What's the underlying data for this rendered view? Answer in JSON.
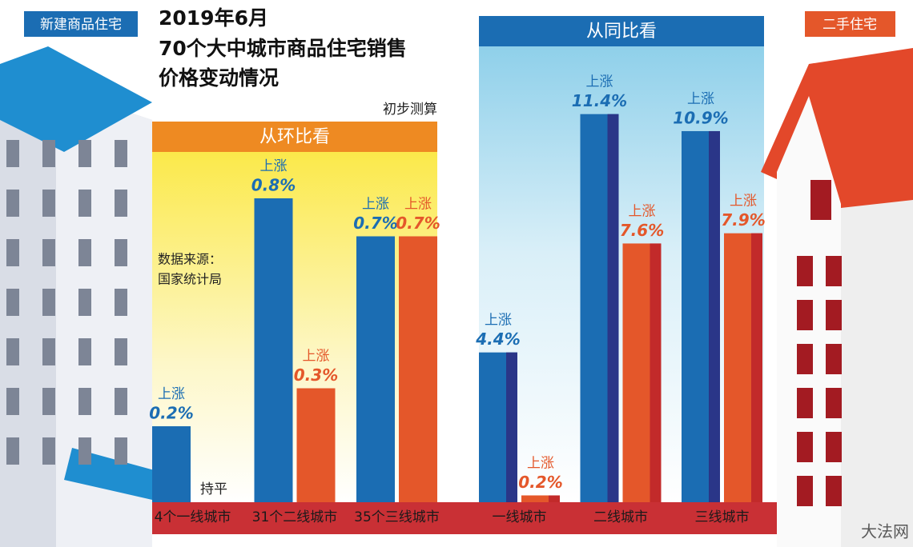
{
  "title_lines": [
    "2019年6月",
    "70个大中城市商品住宅销售",
    "价格变动情况"
  ],
  "note": "初步测算",
  "source": [
    "数据来源：",
    "国家统计局"
  ],
  "legend": [
    {
      "name": "新建商品住宅",
      "color": "#1b6db3"
    },
    {
      "name": "二手住宅",
      "color": "#e4572a"
    }
  ],
  "watermark": "大法网",
  "chart_data": [
    {
      "type": "bar",
      "title": "从环比看",
      "annotation": "上涨",
      "categories": [
        "4个一线城市",
        "31个二线城市",
        "35个三线城市"
      ],
      "series": [
        {
          "color": "#1b6db3",
          "values": [
            0.2,
            0.8,
            0.7
          ],
          "value_labels": [
            "0.2%",
            "0.8%",
            "0.7%"
          ]
        },
        {
          "color": "#e4572a",
          "values": [
            0,
            0.3,
            0.7
          ],
          "value_labels": [
            "持平",
            "0.3%",
            "0.7%"
          ]
        }
      ],
      "ylim": [
        0,
        1
      ]
    },
    {
      "type": "bar",
      "title": "从同比看",
      "annotation": "上涨",
      "categories": [
        "一线城市",
        "二线城市",
        "三线城市"
      ],
      "series": [
        {
          "color": "#1b6db3",
          "values": [
            4.4,
            11.4,
            10.9
          ],
          "value_labels": [
            "4.4%",
            "11.4%",
            "10.9%"
          ]
        },
        {
          "color": "#e4572a",
          "values": [
            0.2,
            7.6,
            7.9
          ],
          "value_labels": [
            "0.2%",
            "7.6%",
            "7.9%"
          ]
        }
      ],
      "ylim": [
        0,
        14
      ]
    }
  ]
}
